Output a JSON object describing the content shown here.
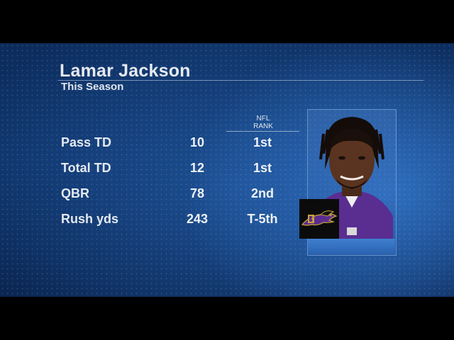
{
  "player": {
    "name": "Lamar Jackson",
    "subtitle": "This Season"
  },
  "rank_header": {
    "line1": "NFL",
    "line2": "RANK"
  },
  "stats": [
    {
      "label": "Pass TD",
      "value": "10",
      "rank": "1st"
    },
    {
      "label": "Total TD",
      "value": "12",
      "rank": "1st"
    },
    {
      "label": "QBR",
      "value": "78",
      "rank": "2nd"
    },
    {
      "label": "Rush yds",
      "value": "243",
      "rank": "T-5th"
    }
  ],
  "colors": {
    "background": "#0e3368",
    "jersey": "#5a2d91",
    "text": "#e6eaf0"
  },
  "icons": {
    "team_logo": "ravens-logo"
  }
}
